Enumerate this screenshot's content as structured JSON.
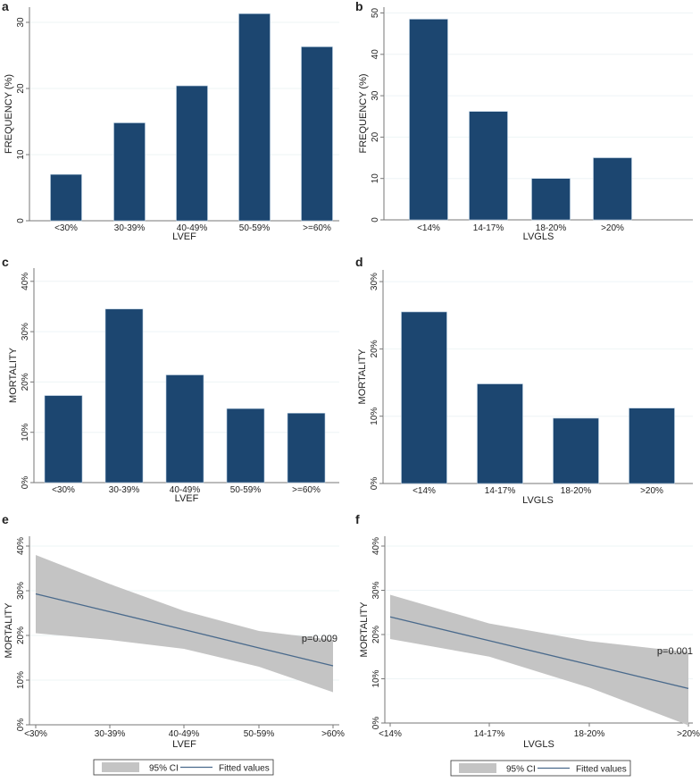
{
  "colors": {
    "bar": "#1c4670",
    "fit": "#4a6a8c",
    "ci": "#c4c4c4",
    "axis": "#777777",
    "grid": "#eef4f6"
  },
  "chart_data": [
    {
      "panel": "a",
      "type": "bar",
      "categories": [
        "<30%",
        "30-39%",
        "40-49%",
        "50-59%",
        ">=60%"
      ],
      "values": [
        7.0,
        14.8,
        20.4,
        31.3,
        26.3
      ],
      "xlabel": "LVEF",
      "ylabel": "FREQUENCY (%)",
      "ylim": [
        0,
        32
      ],
      "yticks": [
        0,
        10,
        20,
        30
      ],
      "ytick_labels": [
        "0",
        "10",
        "20",
        "30"
      ],
      "grid": true
    },
    {
      "panel": "b",
      "type": "bar",
      "categories": [
        "<14%",
        "14-17%",
        "18-20%",
        ">20%"
      ],
      "values": [
        48.5,
        26.2,
        10.0,
        15.0
      ],
      "xlabel": "LVGLS",
      "ylabel": "FREQUENCY (%)",
      "ylim": [
        0,
        50
      ],
      "yticks": [
        0,
        10,
        20,
        30,
        40,
        50
      ],
      "ytick_labels": [
        "0",
        "10",
        "20",
        "30",
        "40",
        "50"
      ],
      "grid": true
    },
    {
      "panel": "c",
      "type": "bar",
      "categories": [
        "<30%",
        "30-39%",
        "40-49%",
        "50-59%",
        ">=60%"
      ],
      "values": [
        17.3,
        34.5,
        21.4,
        14.7,
        13.8
      ],
      "xlabel": "LVEF",
      "ylabel": "MORTALITY",
      "ylim": [
        0,
        40
      ],
      "yticks": [
        0,
        10,
        20,
        30,
        40
      ],
      "ytick_labels": [
        "0%",
        "10%",
        "20%",
        "30%",
        "40%"
      ],
      "grid": true
    },
    {
      "panel": "d",
      "type": "bar",
      "categories": [
        "<14%",
        "14-17%",
        "18-20%",
        ">20%"
      ],
      "values": [
        25.5,
        14.8,
        9.7,
        11.2
      ],
      "xlabel": "LVGLS",
      "ylabel": "MORTALITY",
      "ylim": [
        0,
        30
      ],
      "yticks": [
        0,
        10,
        20,
        30
      ],
      "ytick_labels": [
        "0%",
        "10%",
        "20%",
        "30%"
      ],
      "grid": true
    },
    {
      "panel": "e",
      "type": "line",
      "categories": [
        "<30%",
        "30-39%",
        "40-49%",
        "50-59%",
        ">60%"
      ],
      "fitted": [
        29.3,
        25.3,
        21.3,
        17.2,
        13.2
      ],
      "ci_upper": [
        38.0,
        31.5,
        25.5,
        21.0,
        19.0
      ],
      "ci_lower": [
        20.5,
        19.0,
        17.0,
        13.0,
        7.3
      ],
      "annotation": "p=0.009",
      "xlabel": "LVEF",
      "ylabel": "MORTALITY",
      "ylim": [
        0,
        40
      ],
      "yticks": [
        0,
        10,
        20,
        30,
        40
      ],
      "ytick_labels": [
        "0%",
        "10%",
        "20%",
        "30%",
        "40%"
      ],
      "legend": [
        "95% CI",
        "Fitted values"
      ],
      "legend_position": "bottom",
      "grid": true
    },
    {
      "panel": "f",
      "type": "line",
      "categories": [
        "<14%",
        "14-17%",
        "18-20%",
        ">20%"
      ],
      "fitted": [
        24.0,
        18.6,
        13.2,
        7.8
      ],
      "ci_upper": [
        29.0,
        22.5,
        18.5,
        16.0
      ],
      "ci_lower": [
        19.0,
        15.0,
        8.0,
        -0.5
      ],
      "annotation": "p=0.001",
      "xlabel": "LVGLS",
      "ylabel": "MORTALITY",
      "ylim": [
        0,
        40
      ],
      "yticks": [
        0,
        10,
        20,
        30,
        40
      ],
      "ytick_labels": [
        "0%",
        "10%",
        "20%",
        "30%",
        "40%"
      ],
      "legend": [
        "95% CI",
        "Fitted values"
      ],
      "legend_position": "bottom",
      "grid": true
    }
  ]
}
